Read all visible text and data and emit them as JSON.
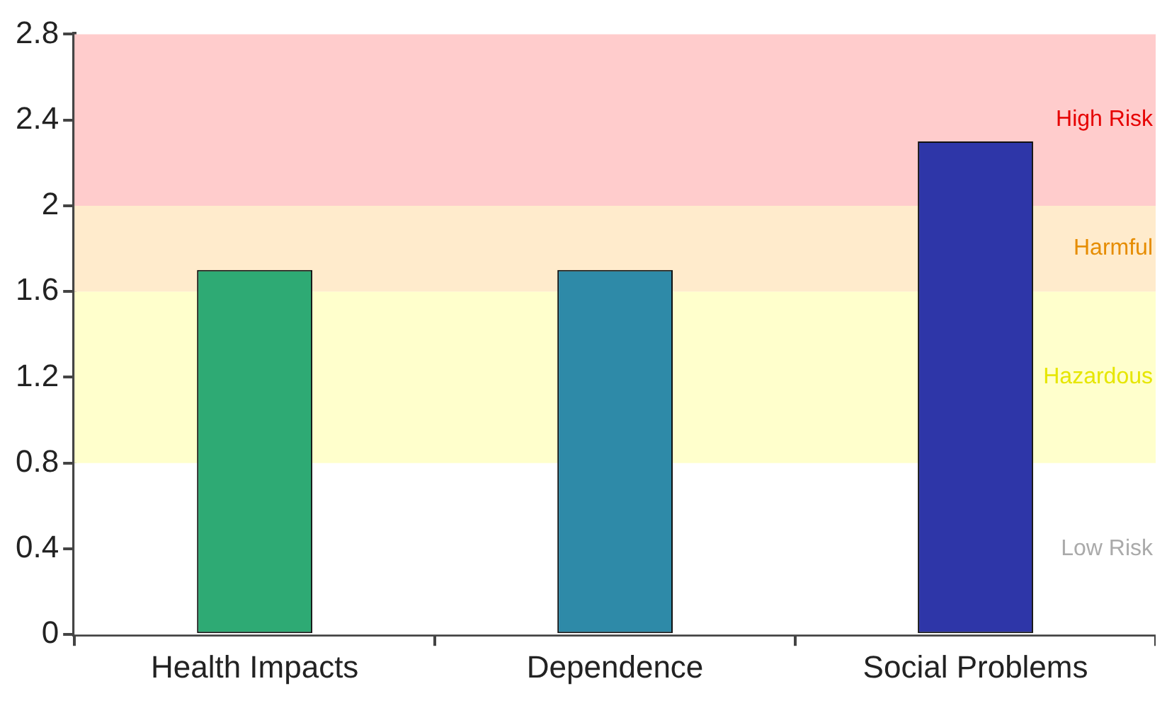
{
  "chart_data": {
    "type": "bar",
    "categories": [
      "Health Impacts",
      "Dependence",
      "Social Problems"
    ],
    "values": [
      1.7,
      1.7,
      2.3
    ],
    "colors": [
      "#2eaa74",
      "#2e8aa8",
      "#2e36a8"
    ],
    "ylim": [
      0,
      2.8
    ],
    "yticks": [
      0,
      0.4,
      0.8,
      1.2,
      1.6,
      2,
      2.4,
      2.8
    ],
    "grid": false,
    "bands": [
      {
        "axis": "y",
        "from": 0,
        "to": 0.8,
        "label": "Low Risk",
        "color": "#ffffff"
      },
      {
        "axis": "y",
        "from": 0.8,
        "to": 1.6,
        "label": "Hazardous",
        "color": "#ffffcc"
      },
      {
        "axis": "y",
        "from": 1.6,
        "to": 2,
        "label": "Harmful",
        "color": "#ffebcc"
      },
      {
        "axis": "y",
        "from": 2,
        "to": 2.8,
        "label": "High Risk",
        "color": "#ffcccc"
      }
    ]
  }
}
